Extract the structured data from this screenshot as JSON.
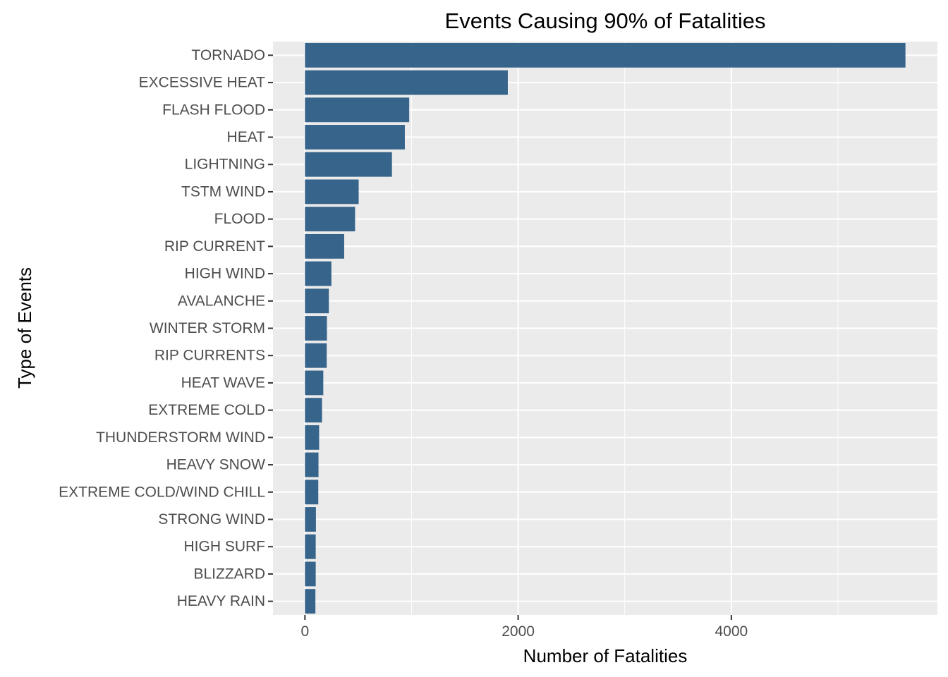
{
  "chart_data": {
    "type": "bar",
    "orientation": "horizontal",
    "title": "Events Causing 90% of Fatalities",
    "xlabel": "Number of Fatalities",
    "ylabel": "Type of Events",
    "categories": [
      "TORNADO",
      "EXCESSIVE HEAT",
      "FLASH FLOOD",
      "HEAT",
      "LIGHTNING",
      "TSTM WIND",
      "FLOOD",
      "RIP CURRENT",
      "HIGH WIND",
      "AVALANCHE",
      "WINTER STORM",
      "RIP CURRENTS",
      "HEAT WAVE",
      "EXTREME COLD",
      "THUNDERSTORM WIND",
      "HEAVY SNOW",
      "EXTREME COLD/WIND CHILL",
      "STRONG WIND",
      "HIGH SURF",
      "BLIZZARD",
      "HEAVY RAIN"
    ],
    "values": [
      5633,
      1903,
      978,
      937,
      816,
      504,
      470,
      368,
      248,
      224,
      206,
      204,
      172,
      160,
      133,
      127,
      125,
      103,
      101,
      101,
      98
    ],
    "xlim": [
      -300,
      5933
    ],
    "xticks": [
      0,
      2000,
      4000
    ],
    "xtick_labels": [
      "0",
      "2000",
      "4000"
    ],
    "grid": true,
    "colors": {
      "bar": "#36648b",
      "panel": "#ebebeb",
      "grid_major": "#ffffff",
      "axis_text": "#4d4d4d",
      "tick_mark": "#333333"
    }
  }
}
